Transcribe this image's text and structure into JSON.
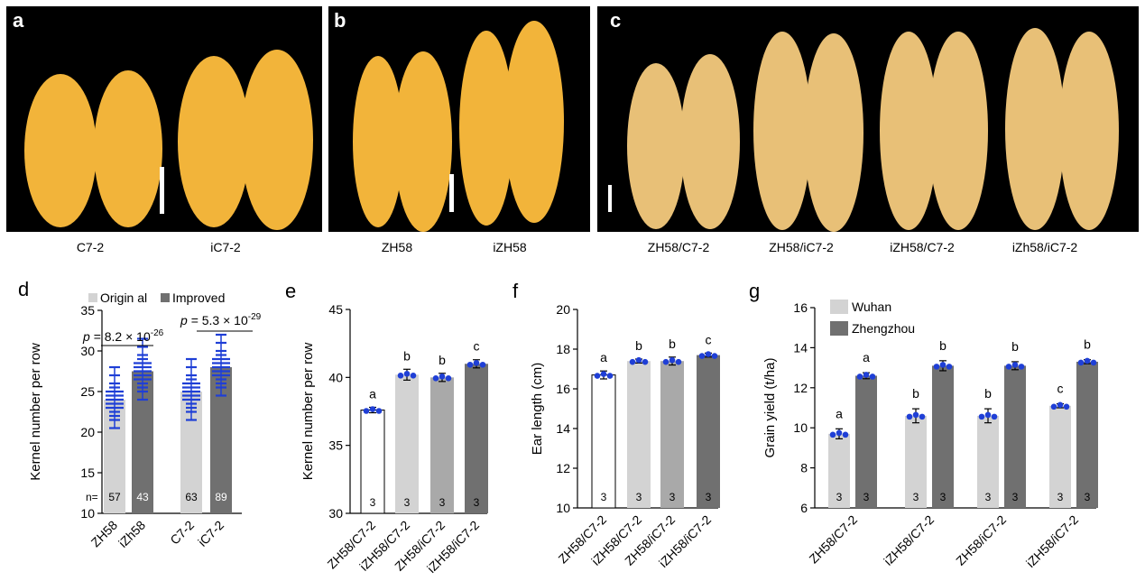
{
  "panels": {
    "a": {
      "label": "a",
      "captions": [
        "C7-2",
        "iC7-2"
      ]
    },
    "b": {
      "label": "b",
      "captions": [
        "ZH58",
        "iZH58"
      ]
    },
    "c": {
      "label": "c",
      "captions": [
        "ZH58/C7-2",
        "ZH58/iC7-2",
        "iZH58/C7-2",
        "iZh58/iC7-2"
      ]
    }
  },
  "colors": {
    "photo_bg": "#000000",
    "kernel": "#f2b43a",
    "kernel_dark": "#d98f1c",
    "scale_bar": "#ffffff",
    "c_kernel": "#e8c077",
    "light_gray": "#d3d3d3",
    "mid_gray": "#a9a9a9",
    "dark_gray": "#707070",
    "dot": "#1f3fd6"
  },
  "chart_data": [
    {
      "panel": "d",
      "type": "bar",
      "ylabel": "Kernel number per row",
      "ylim": [
        10,
        35
      ],
      "yticks": [
        10,
        15,
        20,
        25,
        30,
        35
      ],
      "categories": [
        "ZH58",
        "iZh58",
        "C7-2",
        "iC7-2"
      ],
      "values": [
        24.0,
        27.5,
        25.0,
        28.0
      ],
      "n_labels": [
        "n=",
        "57",
        "43",
        "63",
        "89"
      ],
      "legend": [
        "Origin al",
        "Improved"
      ],
      "pvalues": [
        {
          "base": "8.2 × 10",
          "exp": "-26"
        },
        {
          "base": "5.3 × 10",
          "exp": "-29"
        }
      ],
      "p_letter": "p"
    },
    {
      "panel": "e",
      "type": "bar",
      "ylabel": "Kernel number per row",
      "ylim": [
        30,
        45
      ],
      "yticks": [
        30,
        35,
        40,
        45
      ],
      "categories": [
        "ZH58/C7-2",
        "iZH58/C7-2",
        "ZH58/iC7-2",
        "iZH58/iC7-2"
      ],
      "values": [
        37.6,
        40.2,
        40.0,
        41.0
      ],
      "errors": [
        0.2,
        0.4,
        0.3,
        0.3
      ],
      "letters": [
        "a",
        "b",
        "b",
        "c"
      ],
      "n": [
        "3",
        "3",
        "3",
        "3"
      ]
    },
    {
      "panel": "f",
      "type": "bar",
      "ylabel": "Ear length (cm)",
      "ylim": [
        10,
        20
      ],
      "yticks": [
        10,
        12,
        14,
        16,
        18,
        20
      ],
      "categories": [
        "ZH58/C7-2",
        "iZH58/C7-2",
        "ZH58/iC7-2",
        "iZH58/iC7-2"
      ],
      "values": [
        16.7,
        17.4,
        17.4,
        17.7
      ],
      "errors": [
        0.2,
        0.1,
        0.2,
        0.1
      ],
      "letters": [
        "a",
        "b",
        "b",
        "c"
      ],
      "n": [
        "3",
        "3",
        "3",
        "3"
      ]
    },
    {
      "panel": "g",
      "type": "bar",
      "ylabel": "Grain yield (t/ha)",
      "ylim": [
        6,
        16
      ],
      "yticks": [
        6,
        8,
        10,
        12,
        14,
        16
      ],
      "categories": [
        "ZH58/C7-2",
        "iZH58/C7-2",
        "ZH58/iC7-2",
        "iZH58/iC7-2"
      ],
      "series": [
        {
          "name": "Wuhan",
          "values": [
            9.7,
            10.6,
            10.6,
            11.1
          ],
          "errors": [
            0.25,
            0.35,
            0.35,
            0.1
          ],
          "letters": [
            "a",
            "b",
            "b",
            "c"
          ]
        },
        {
          "name": "Zhengzhou",
          "values": [
            12.6,
            13.1,
            13.1,
            13.3
          ],
          "errors": [
            0.15,
            0.25,
            0.2,
            0.1
          ],
          "letters": [
            "a",
            "b",
            "b",
            "b"
          ]
        }
      ],
      "n": [
        "3",
        "3",
        "3",
        "3",
        "3",
        "3",
        "3",
        "3"
      ]
    }
  ]
}
